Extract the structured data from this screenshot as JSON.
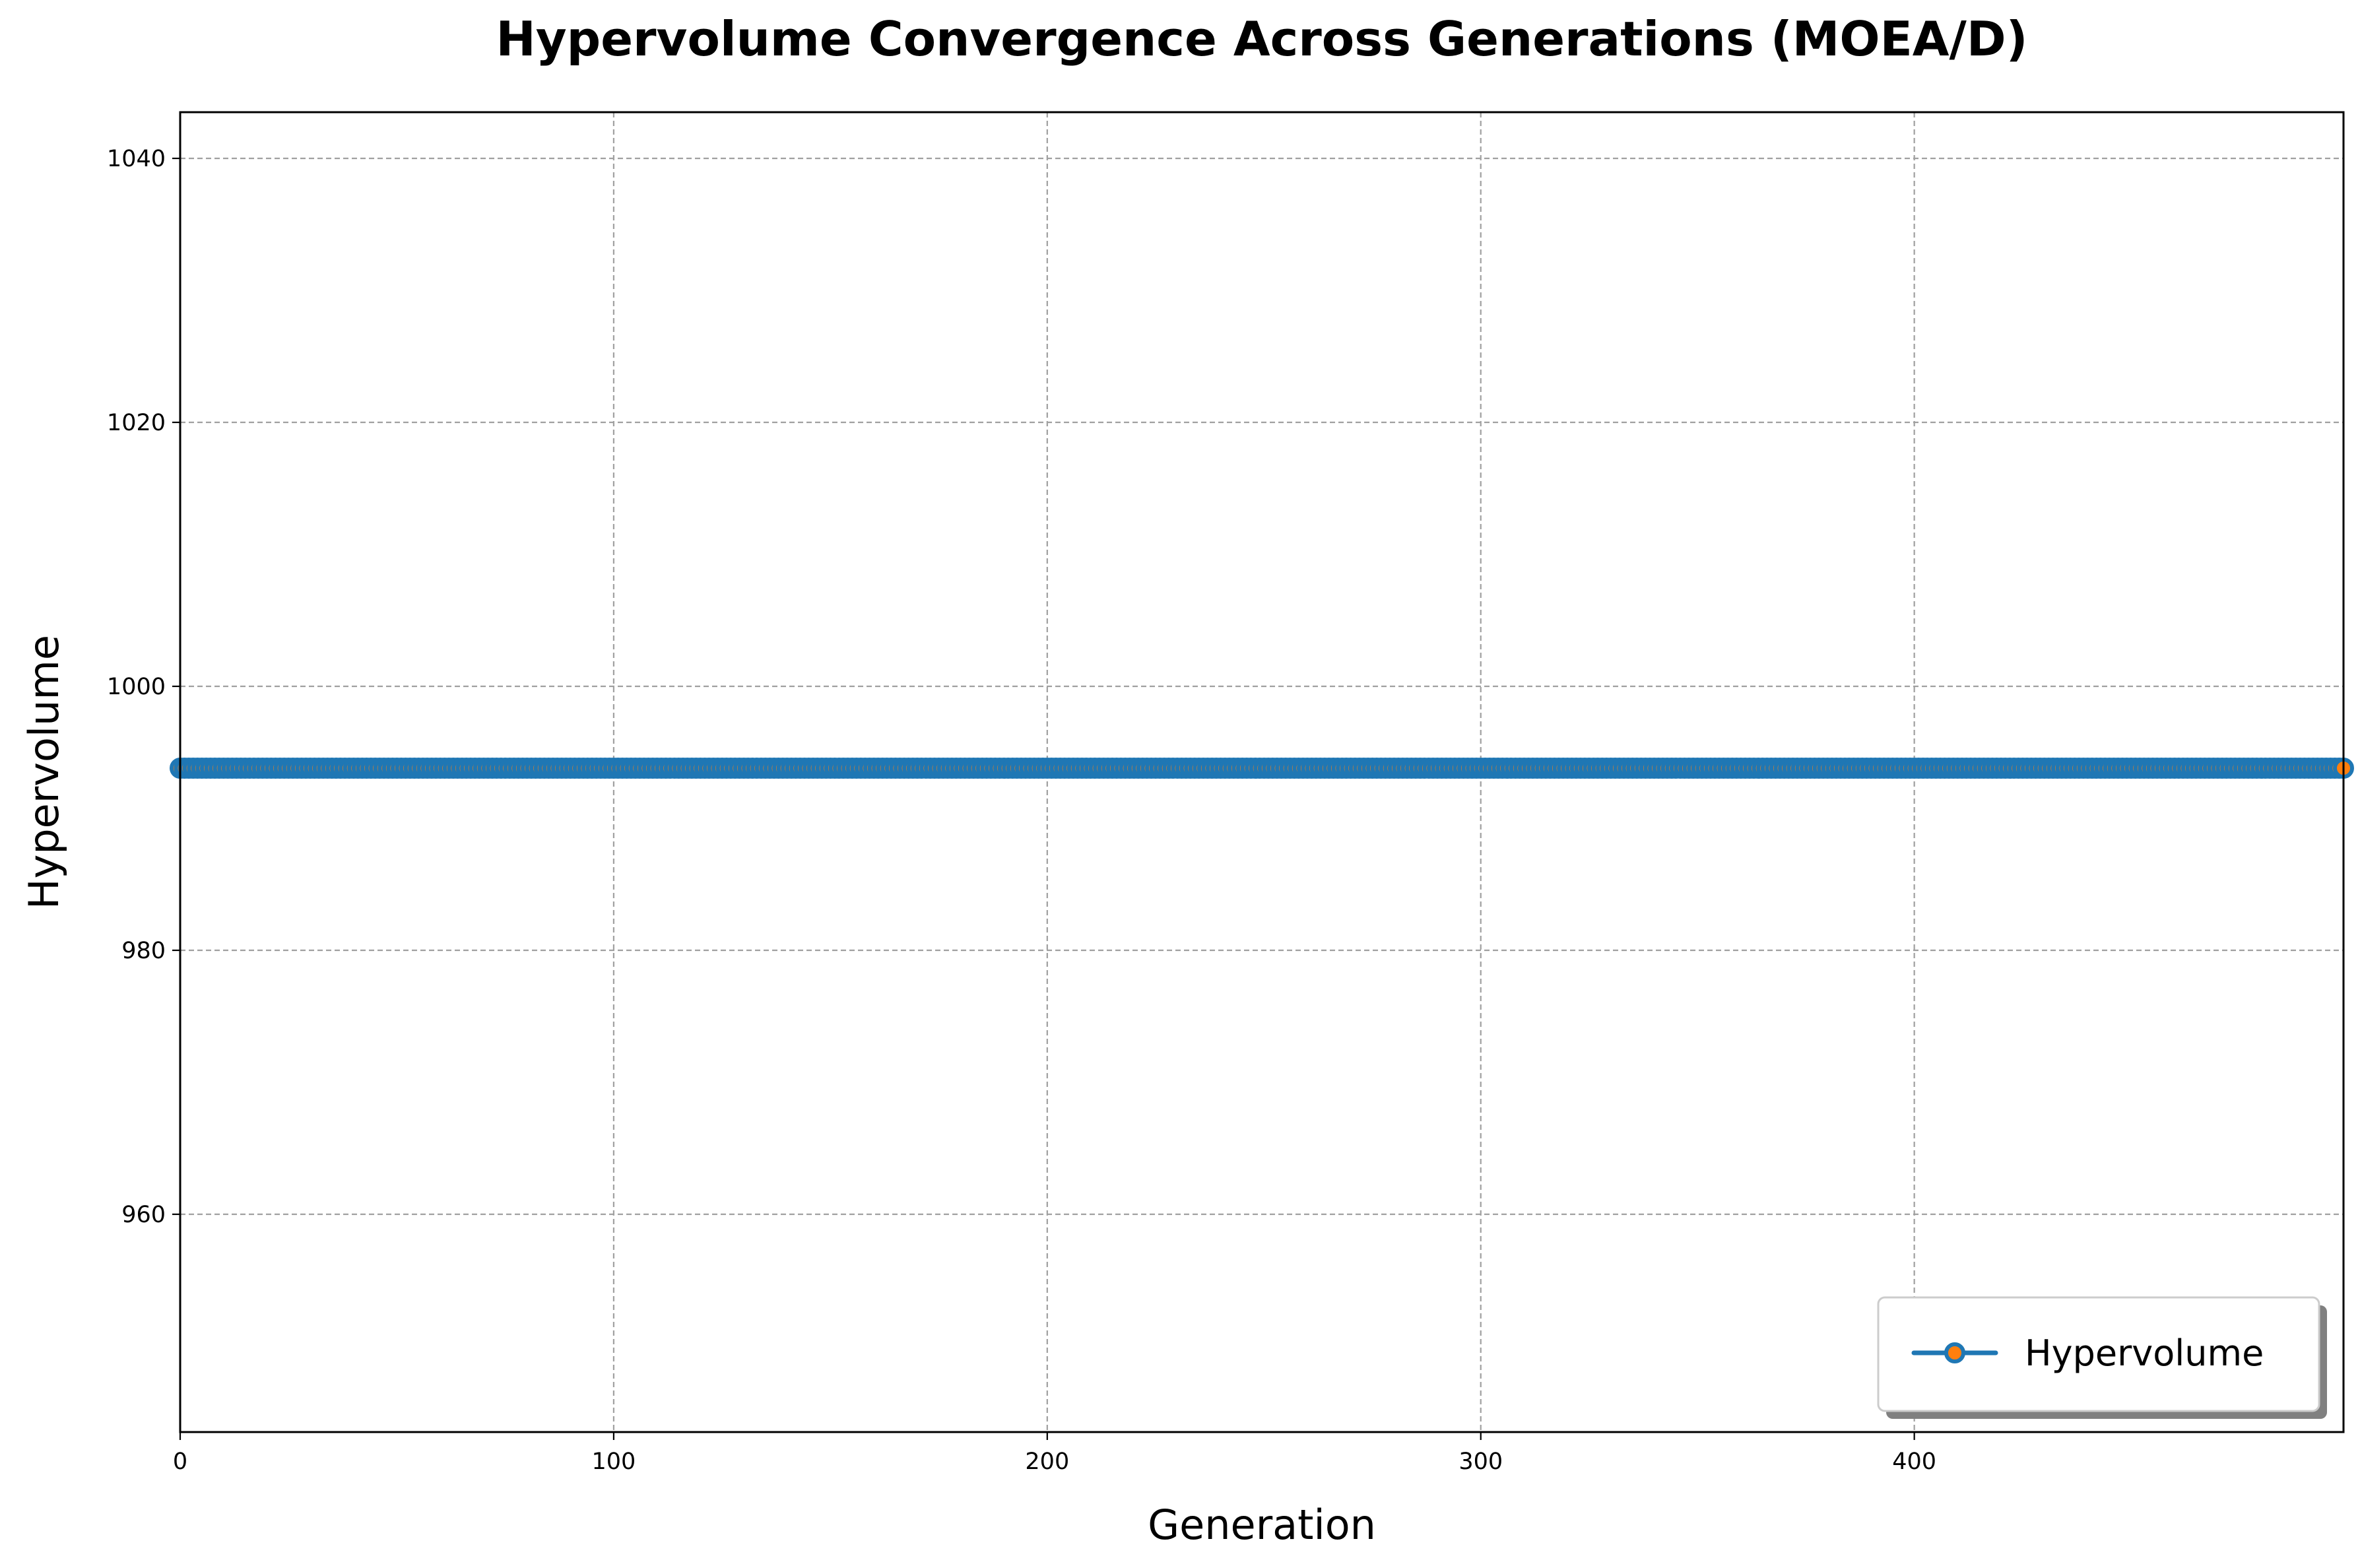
{
  "chart_data": {
    "type": "line",
    "title": "Hypervolume Convergence Across Generations (MOEA/D)",
    "xlabel": "Generation",
    "ylabel": "Hypervolume",
    "xlim": [
      0,
      499
    ],
    "ylim": [
      943.5,
      1043.5
    ],
    "xticks": [
      0,
      100,
      200,
      300,
      400
    ],
    "yticks": [
      960,
      980,
      1000,
      1020,
      1040
    ],
    "grid": true,
    "legend_position": "lower-right",
    "series": [
      {
        "name": "Hypervolume",
        "color": "#1f77b4",
        "marker_face_color": "#ff7f0e",
        "x_start": 0,
        "x_end": 499,
        "x_step": 1,
        "constant_value": 993.8
      }
    ]
  }
}
